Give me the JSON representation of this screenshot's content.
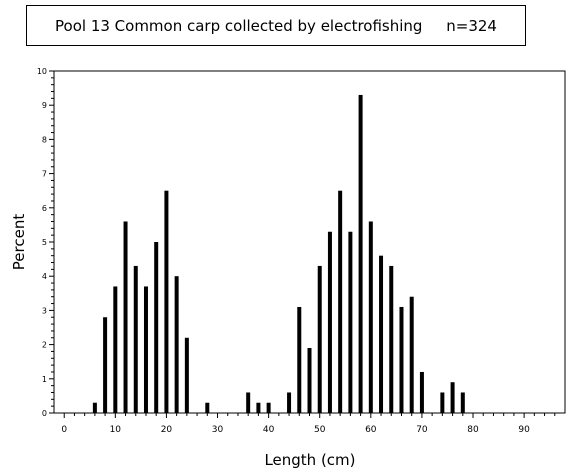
{
  "chart_data": {
    "type": "bar",
    "title": "Pool 13 Common carp collected by electrofishing     n=324",
    "xlabel": "Length (cm)",
    "ylabel": "Percent",
    "xlim": [
      -2,
      98
    ],
    "ylim": [
      0,
      10
    ],
    "xticks": [
      0,
      10,
      20,
      30,
      40,
      50,
      60,
      70,
      80,
      90
    ],
    "yticks": [
      0,
      1,
      2,
      3,
      4,
      5,
      6,
      7,
      8,
      9,
      10
    ],
    "x": [
      6,
      8,
      10,
      12,
      14,
      16,
      18,
      20,
      22,
      24,
      28,
      36,
      38,
      40,
      44,
      46,
      48,
      50,
      52,
      54,
      56,
      58,
      60,
      62,
      64,
      66,
      68,
      70,
      74,
      76,
      78
    ],
    "values": [
      0.3,
      2.8,
      3.7,
      5.6,
      4.3,
      3.7,
      5.0,
      6.5,
      4.0,
      2.2,
      0.3,
      0.6,
      0.3,
      0.3,
      0.6,
      3.1,
      1.9,
      4.3,
      5.3,
      6.5,
      5.3,
      9.3,
      5.6,
      4.6,
      4.3,
      3.1,
      3.4,
      1.2,
      0.6,
      0.9,
      0.6
    ],
    "bar_color": "#000000",
    "grid": false,
    "legend": "none"
  }
}
